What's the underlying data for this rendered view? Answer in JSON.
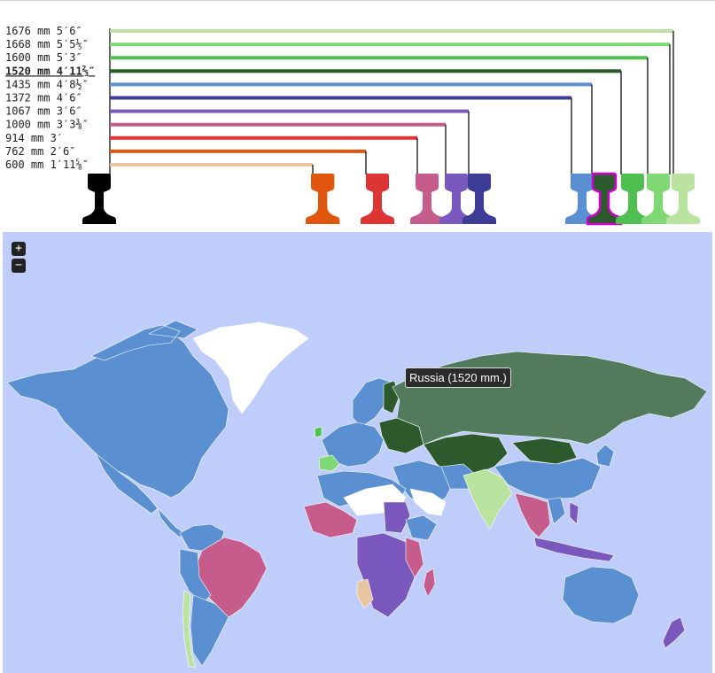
{
  "gauges": [
    {
      "mm": "1676 mm",
      "imperial": "5′6″",
      "color": "#b9e39e",
      "active": false
    },
    {
      "mm": "1668 mm",
      "imperial": "5′5⅕″",
      "color": "#7fd873",
      "active": false
    },
    {
      "mm": "1600 mm",
      "imperial": "5′3″",
      "color": "#4fbf4f",
      "active": false
    },
    {
      "mm": "1520 mm",
      "imperial": "4′11⅔″",
      "color": "#2d5a2d",
      "active": true
    },
    {
      "mm": "1435 mm",
      "imperial": "4′8½″",
      "color": "#5a8fd2",
      "active": false
    },
    {
      "mm": "1372 mm",
      "imperial": "4′6″",
      "color": "#3c3c96",
      "active": false
    },
    {
      "mm": "1067 mm",
      "imperial": "3′6″",
      "color": "#7a58bd",
      "active": false
    },
    {
      "mm": "1000 mm",
      "imperial": "3′3⅜″",
      "color": "#c65c8c",
      "active": false
    },
    {
      "mm": "914 mm",
      "imperial": "3′",
      "color": "#dd3434",
      "active": false
    },
    {
      "mm": "762 mm",
      "imperial": "2′6″",
      "color": "#e0560f",
      "active": false
    },
    {
      "mm": "600 mm",
      "imperial": "1′11⅝″",
      "color": "#e8c4a0",
      "active": false
    }
  ],
  "reference_rail_color": "#000000",
  "active_outline_color": "#d100d1",
  "map": {
    "ocean_color": "#bfcdfb",
    "zoom_in_label": "+",
    "zoom_out_label": "−",
    "tooltip": "Russia (1520 mm.)",
    "legend_colors": {
      "standard_1435": "#5a8fd2",
      "russian_1520": "#2d5a2d",
      "russia_highlight": "#527a5c",
      "indian_1676": "#b9e39e",
      "iberian_1668": "#7fd873",
      "irish_1600": "#4fbf4f",
      "cape_1067": "#7a58bd",
      "metre_1000": "#c65c8c",
      "narrow_600": "#e8c4a0",
      "no_data": "#ffffff"
    }
  }
}
